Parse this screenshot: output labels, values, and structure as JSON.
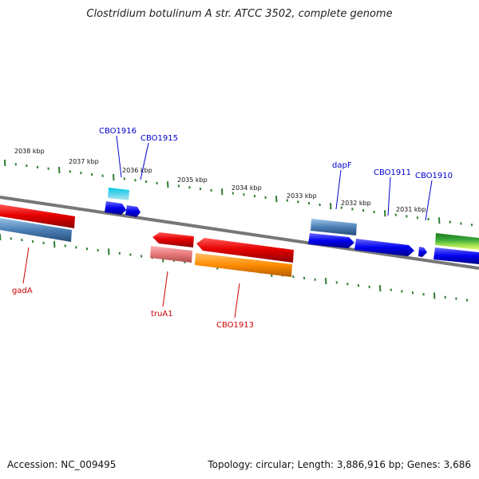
{
  "title": "Clostridium botulinum A str. ATCC 3502, complete genome",
  "accession": "Accession: NC_009495",
  "summary": "Topology: circular; Length: 3,886,916 bp; Genes: 3,686",
  "colors": {
    "backbone": "#7a7a7a",
    "tick": "#2e7d32",
    "forward_label": "#0000cc",
    "reverse_label": "#cc0000"
  },
  "kbp_labels": [
    "2038 kbp",
    "2037 kbp",
    "2036 kbp",
    "2035 kbp",
    "2034 kbp",
    "2033 kbp",
    "2032 kbp",
    "2031 kbp"
  ],
  "forward_gene_labels": [
    "CBO1916",
    "CBO1915",
    "dapF",
    "CBO1911",
    "CBO1910"
  ],
  "reverse_gene_labels": [
    "gadA",
    "truA1",
    "CBO1913"
  ]
}
